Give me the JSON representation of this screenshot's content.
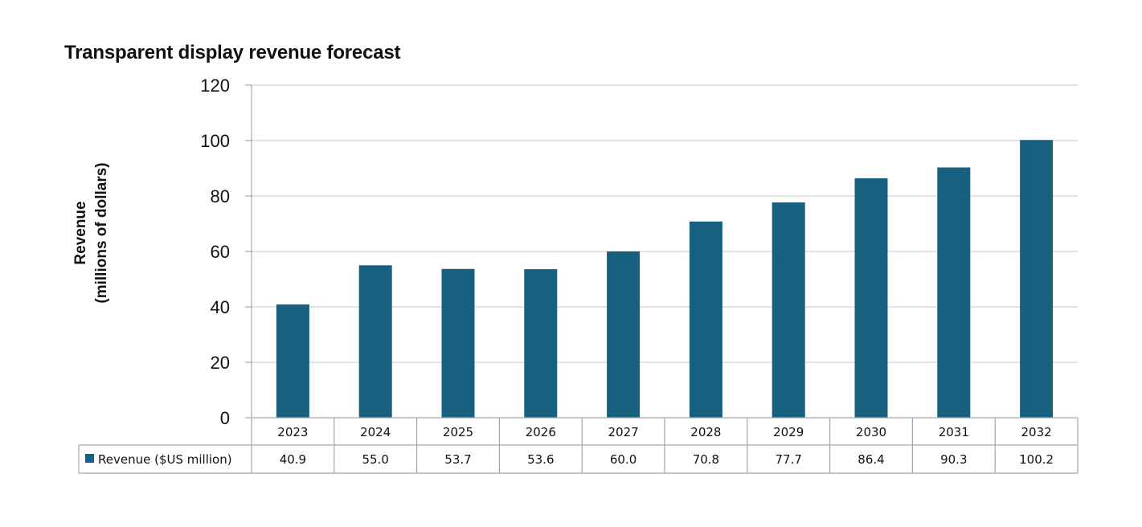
{
  "chart_data": {
    "type": "bar",
    "title": "Transparent display revenue forecast",
    "xlabel": "",
    "ylabel": "Revenue",
    "ylabel_line2": "(millions of dollars)",
    "categories": [
      "2023",
      "2024",
      "2025",
      "2026",
      "2027",
      "2028",
      "2029",
      "2030",
      "2031",
      "2032"
    ],
    "series": [
      {
        "name": "Revenue ($US million)",
        "color": "#17607f",
        "values": [
          40.9,
          55.0,
          53.7,
          53.6,
          60.0,
          70.8,
          77.7,
          86.4,
          90.3,
          100.2
        ],
        "value_labels": [
          "40.9",
          "55.0",
          "53.7",
          "53.6",
          "60.0",
          "70.8",
          "77.7",
          "86.4",
          "90.3",
          "100.2"
        ]
      }
    ],
    "ylim": [
      0,
      120
    ],
    "yticks": [
      0,
      20,
      40,
      60,
      80,
      100,
      120
    ],
    "grid": true,
    "grid_color": "#e3e3e3",
    "legend": "data-table-below",
    "data_table": true
  }
}
